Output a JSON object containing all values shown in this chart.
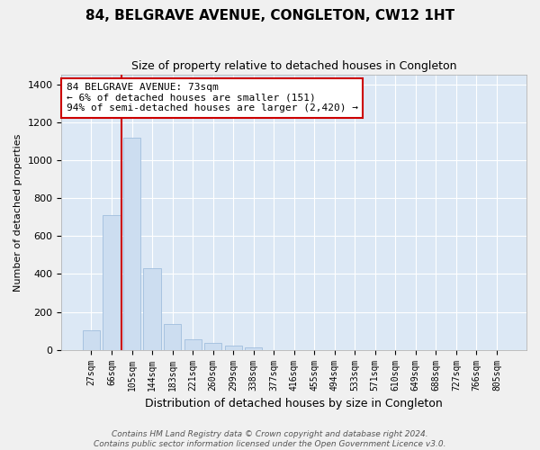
{
  "title": "84, BELGRAVE AVENUE, CONGLETON, CW12 1HT",
  "subtitle": "Size of property relative to detached houses in Congleton",
  "xlabel_bottom": "Distribution of detached houses by size in Congleton",
  "ylabel": "Number of detached properties",
  "bar_color": "#ccddf0",
  "bar_edge_color": "#a0bedd",
  "vline_color": "#cc0000",
  "annotation_line1": "84 BELGRAVE AVENUE: 73sqm",
  "annotation_line2": "← 6% of detached houses are smaller (151)",
  "annotation_line3": "94% of semi-detached houses are larger (2,420) →",
  "annotation_box_color": "#ffffff",
  "annotation_box_edge_color": "#cc0000",
  "categories": [
    "27sqm",
    "66sqm",
    "105sqm",
    "144sqm",
    "183sqm",
    "221sqm",
    "260sqm",
    "299sqm",
    "338sqm",
    "377sqm",
    "416sqm",
    "455sqm",
    "494sqm",
    "533sqm",
    "571sqm",
    "610sqm",
    "649sqm",
    "688sqm",
    "727sqm",
    "766sqm",
    "805sqm"
  ],
  "values": [
    105,
    710,
    1120,
    430,
    135,
    55,
    35,
    20,
    13,
    0,
    0,
    0,
    0,
    0,
    0,
    0,
    0,
    0,
    0,
    0,
    0
  ],
  "ylim": [
    0,
    1450
  ],
  "yticks": [
    0,
    200,
    400,
    600,
    800,
    1000,
    1200,
    1400
  ],
  "background_color": "#dce8f5",
  "grid_color": "#ffffff",
  "footer_line1": "Contains HM Land Registry data © Crown copyright and database right 2024.",
  "footer_line2": "Contains public sector information licensed under the Open Government Licence v3.0.",
  "fig_background": "#f0f0f0"
}
